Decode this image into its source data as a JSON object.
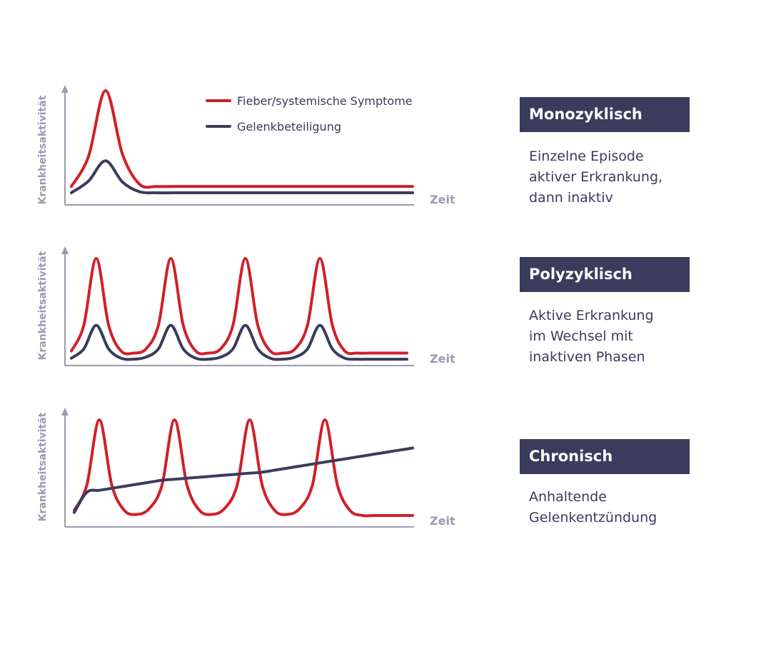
{
  "legend": {
    "fever_label": "Fieber/systemische Symptome",
    "joint_label": "Gelenkbeteiligung"
  },
  "colors": {
    "fever": "#d0202a",
    "joint": "#3b3b5d",
    "axis": "#9a9ab0",
    "badge_bg": "#3b3b5d"
  },
  "chart_data": [
    {
      "type": "line",
      "ylabel": "Krankheitsaktivität",
      "xlabel": "Zeit",
      "x": [
        0,
        1,
        2,
        3,
        4,
        5,
        6,
        7,
        8,
        9,
        10,
        11,
        12,
        13,
        14,
        15,
        16,
        17,
        18,
        19,
        20
      ],
      "series": [
        {
          "name": "Fieber/systemische Symptome",
          "values": [
            0.1,
            0.38,
            1.0,
            0.4,
            0.12,
            0.1,
            0.1,
            0.1,
            0.1,
            0.1,
            0.1,
            0.1,
            0.1,
            0.1,
            0.1,
            0.1,
            0.1,
            0.1,
            0.1,
            0.1,
            0.1
          ]
        },
        {
          "name": "Gelenkbeteiligung",
          "values": [
            0.04,
            0.15,
            0.34,
            0.14,
            0.05,
            0.04,
            0.04,
            0.04,
            0.04,
            0.04,
            0.04,
            0.04,
            0.04,
            0.04,
            0.04,
            0.04,
            0.04,
            0.04,
            0.04,
            0.04,
            0.04
          ]
        }
      ]
    },
    {
      "type": "line",
      "ylabel": "Krankheitsaktivität",
      "xlabel": "Zeit",
      "x": [
        0,
        1,
        2,
        3,
        4,
        5,
        6,
        7,
        8,
        9,
        10,
        11,
        12,
        13,
        14,
        15,
        16,
        17,
        18,
        19,
        20,
        21,
        22,
        23,
        24,
        25,
        26,
        27
      ],
      "series": [
        {
          "name": "Fieber/systemische Symptome",
          "values": [
            0.1,
            0.35,
            1.0,
            0.35,
            0.1,
            0.08,
            0.12,
            0.35,
            1.0,
            0.35,
            0.1,
            0.08,
            0.12,
            0.35,
            1.0,
            0.35,
            0.1,
            0.08,
            0.12,
            0.35,
            1.0,
            0.35,
            0.1,
            0.08,
            0.08,
            0.08,
            0.08,
            0.08
          ]
        },
        {
          "name": "Gelenkbeteiligung",
          "values": [
            0.03,
            0.12,
            0.35,
            0.12,
            0.03,
            0.02,
            0.04,
            0.12,
            0.35,
            0.12,
            0.03,
            0.02,
            0.04,
            0.12,
            0.35,
            0.12,
            0.03,
            0.02,
            0.04,
            0.12,
            0.35,
            0.12,
            0.03,
            0.02,
            0.02,
            0.02,
            0.02,
            0.02
          ]
        }
      ]
    },
    {
      "type": "line",
      "ylabel": "Krankheitsaktivität",
      "xlabel": "Zeit",
      "x": [
        0,
        1,
        2,
        3,
        4,
        5,
        6,
        7,
        8,
        9,
        10,
        11,
        12,
        13,
        14,
        15,
        16,
        17,
        18,
        19,
        20,
        21,
        22,
        23,
        24,
        25,
        26,
        27
      ],
      "series": [
        {
          "name": "Fieber/systemische Symptome",
          "values": [
            0.1,
            0.35,
            1.0,
            0.35,
            0.1,
            0.06,
            0.12,
            0.35,
            1.0,
            0.35,
            0.1,
            0.06,
            0.12,
            0.35,
            1.0,
            0.35,
            0.1,
            0.06,
            0.12,
            0.35,
            1.0,
            0.35,
            0.1,
            0.05,
            0.05,
            0.05,
            0.05,
            0.05
          ]
        },
        {
          "name": "Gelenkbeteiligung",
          "values": [
            0.08,
            0.28,
            0.3,
            0.32,
            0.34,
            0.36,
            0.38,
            0.4,
            0.41,
            0.42,
            0.43,
            0.44,
            0.45,
            0.46,
            0.47,
            0.48,
            0.5,
            0.52,
            0.54,
            0.56,
            0.58,
            0.6,
            0.62,
            0.64,
            0.66,
            0.68,
            0.7,
            0.72
          ]
        }
      ]
    }
  ],
  "panels": [
    {
      "title": "Monozyklisch",
      "lines": [
        "Einzelne Episode",
        "aktiver Erkrankung,",
        "dann inaktiv"
      ]
    },
    {
      "title": "Polyzyklisch",
      "lines": [
        "Aktive Erkrankung",
        "im Wechsel mit",
        "inaktiven Phasen"
      ]
    },
    {
      "title": "Chronisch",
      "lines": [
        "Anhaltende",
        "Gelenkentzündung"
      ]
    }
  ]
}
